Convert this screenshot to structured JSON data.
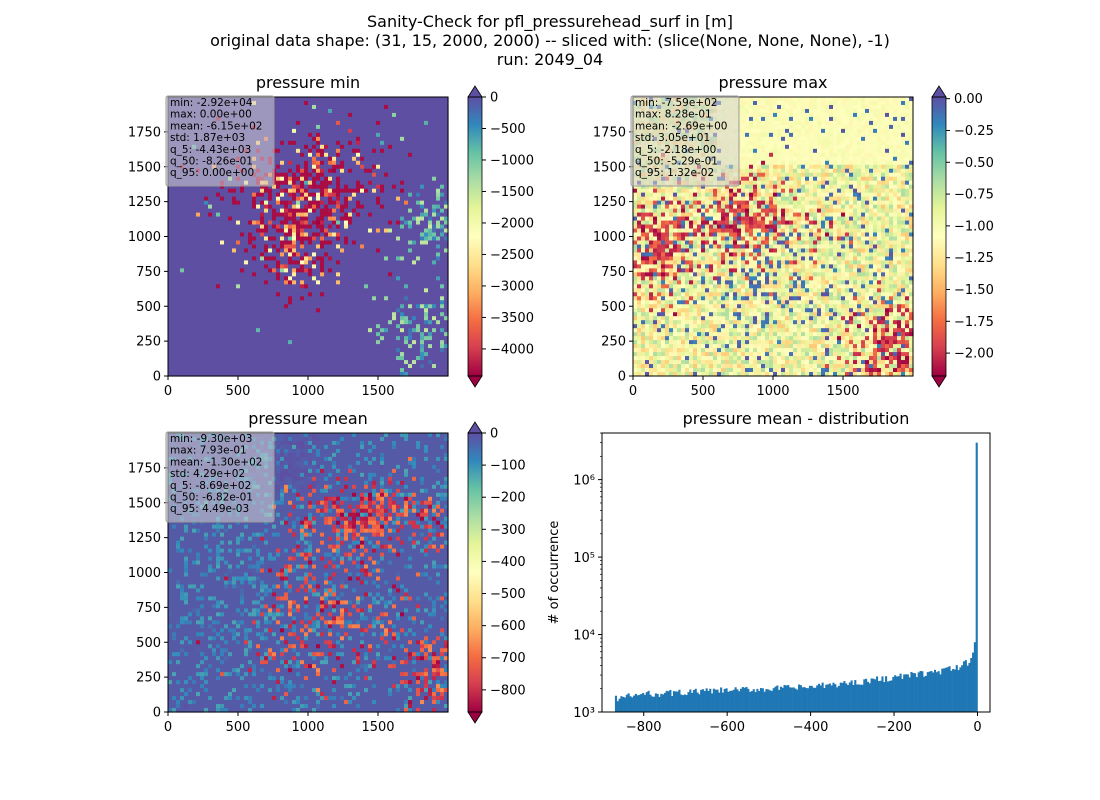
{
  "figure": {
    "title_lines": [
      "Sanity-Check for pfl_pressurehead_surf in [m]",
      "original data shape: (31, 15, 2000, 2000) -- sliced with: (slice(None, None, None), -1)",
      "run: 2049_04"
    ],
    "colormap": "Spectral",
    "colormap_stops": [
      "#9e0142",
      "#d53e4f",
      "#f46d43",
      "#fdae61",
      "#fee08b",
      "#ffffbf",
      "#e6f598",
      "#abdda4",
      "#66c2a5",
      "#3288bd",
      "#5e4fa2"
    ]
  },
  "chart_data": [
    {
      "type": "heatmap",
      "title": "pressure min",
      "xlim": [
        0,
        2000
      ],
      "ylim": [
        0,
        2000
      ],
      "xticks": [
        "0",
        "500",
        "1000",
        "1500"
      ],
      "yticks": [
        "0",
        "250",
        "500",
        "750",
        "1000",
        "1250",
        "1500",
        "1750"
      ],
      "colorbar": {
        "vmin": -4430,
        "vmax": 0,
        "extend": "both",
        "ticks": [
          "0",
          "−500",
          "−1000",
          "−1500",
          "−2000",
          "−2500",
          "−3000",
          "−3500",
          "−4000"
        ]
      },
      "stats": [
        "min: -2.92e+04",
        "max: 0.00e+00",
        "mean: -6.15e+02",
        "std: 1.87e+03",
        "q_5: -4.43e+03",
        "q_50: -8.26e-01",
        "q_95: 0.00e+00"
      ]
    },
    {
      "type": "heatmap",
      "title": "pressure max",
      "xlim": [
        0,
        2000
      ],
      "ylim": [
        0,
        2000
      ],
      "xticks": [
        "0",
        "500",
        "1000",
        "1500"
      ],
      "yticks": [
        "0",
        "250",
        "500",
        "750",
        "1000",
        "1250",
        "1500",
        "1750"
      ],
      "colorbar": {
        "vmin": -2.18,
        "vmax": 0.0132,
        "extend": "both",
        "ticks": [
          "0.00",
          "−0.25",
          "−0.50",
          "−0.75",
          "−1.00",
          "−1.25",
          "−1.50",
          "−1.75",
          "−2.00"
        ]
      },
      "stats": [
        "min: -7.59e+02",
        "max: 8.28e-01",
        "mean: -2.69e+00",
        "std: 3.05e+01",
        "q_5: -2.18e+00",
        "q_50: -5.29e-01",
        "q_95: 1.32e-02"
      ]
    },
    {
      "type": "heatmap",
      "title": "pressure mean",
      "xlim": [
        0,
        2000
      ],
      "ylim": [
        0,
        2000
      ],
      "xticks": [
        "0",
        "500",
        "1000",
        "1500"
      ],
      "yticks": [
        "0",
        "250",
        "500",
        "750",
        "1000",
        "1250",
        "1500",
        "1750"
      ],
      "colorbar": {
        "vmin": -869,
        "vmax": 0.00449,
        "extend": "both",
        "ticks": [
          "0",
          "−100",
          "−200",
          "−300",
          "−400",
          "−500",
          "−600",
          "−700",
          "−800"
        ]
      },
      "stats": [
        "min: -9.30e+03",
        "max: 7.93e-01",
        "mean: -1.30e+02",
        "std: 4.29e+02",
        "q_5: -8.69e+02",
        "q_50: -6.82e-01",
        "q_95: 4.49e-03"
      ]
    },
    {
      "type": "bar",
      "title": "pressure mean - distribution",
      "ylabel": "# of occurrence",
      "yscale": "log",
      "xlim": [
        -900,
        30
      ],
      "ylim": [
        1000,
        4000000
      ],
      "xticks": [
        "−800",
        "−600",
        "−400",
        "−200",
        "0"
      ],
      "yticks": [
        "10³",
        "10⁴",
        "10⁵",
        "10⁶"
      ],
      "color": "#1f77b4",
      "bin_range": [
        -869,
        0
      ],
      "bins": 200,
      "profile": [
        {
          "x": -869,
          "count": 1500
        },
        {
          "x": -800,
          "count": 1700
        },
        {
          "x": -700,
          "count": 1800
        },
        {
          "x": -600,
          "count": 1900
        },
        {
          "x": -500,
          "count": 2000
        },
        {
          "x": -400,
          "count": 2100
        },
        {
          "x": -300,
          "count": 2400
        },
        {
          "x": -200,
          "count": 2800
        },
        {
          "x": -100,
          "count": 3300
        },
        {
          "x": -50,
          "count": 3700
        },
        {
          "x": -20,
          "count": 4500
        },
        {
          "x": -10,
          "count": 6000
        },
        {
          "x": -5,
          "count": 9000
        },
        {
          "x": -3,
          "count": 32000
        },
        {
          "x": 0,
          "count": 3000000
        }
      ]
    }
  ]
}
